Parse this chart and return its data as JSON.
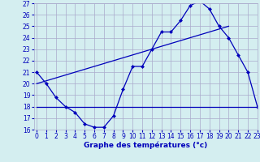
{
  "xlabel": "Graphe des températures (°c)",
  "bg_color": "#d4eef0",
  "grid_color": "#aaaacc",
  "line_color": "#0000bb",
  "hours": [
    0,
    1,
    2,
    3,
    4,
    5,
    6,
    7,
    8,
    9,
    10,
    11,
    12,
    13,
    14,
    15,
    16,
    17,
    18,
    19,
    20,
    21,
    22,
    23
  ],
  "temps": [
    21,
    20,
    18.8,
    18.0,
    17.5,
    16.5,
    16.2,
    16.2,
    17.2,
    19.5,
    21.5,
    21.5,
    23,
    24.5,
    24.5,
    25.5,
    26.8,
    27.2,
    26.5,
    25.0,
    24.0,
    22.5,
    21.0,
    18.0
  ],
  "hline_x": [
    0,
    23
  ],
  "hline_y": [
    18.0,
    18.0
  ],
  "trend_x": [
    0,
    20
  ],
  "trend_y": [
    20.0,
    25.0
  ],
  "ylim": [
    16,
    27
  ],
  "xlim": [
    -0.3,
    23
  ],
  "yticks": [
    16,
    17,
    18,
    19,
    20,
    21,
    22,
    23,
    24,
    25,
    26,
    27
  ],
  "xticks": [
    0,
    1,
    2,
    3,
    4,
    5,
    6,
    7,
    8,
    9,
    10,
    11,
    12,
    13,
    14,
    15,
    16,
    17,
    18,
    19,
    20,
    21,
    22,
    23
  ],
  "tick_fontsize": 5.5,
  "xlabel_fontsize": 6.5,
  "marker_size": 2.5,
  "linewidth": 0.9
}
